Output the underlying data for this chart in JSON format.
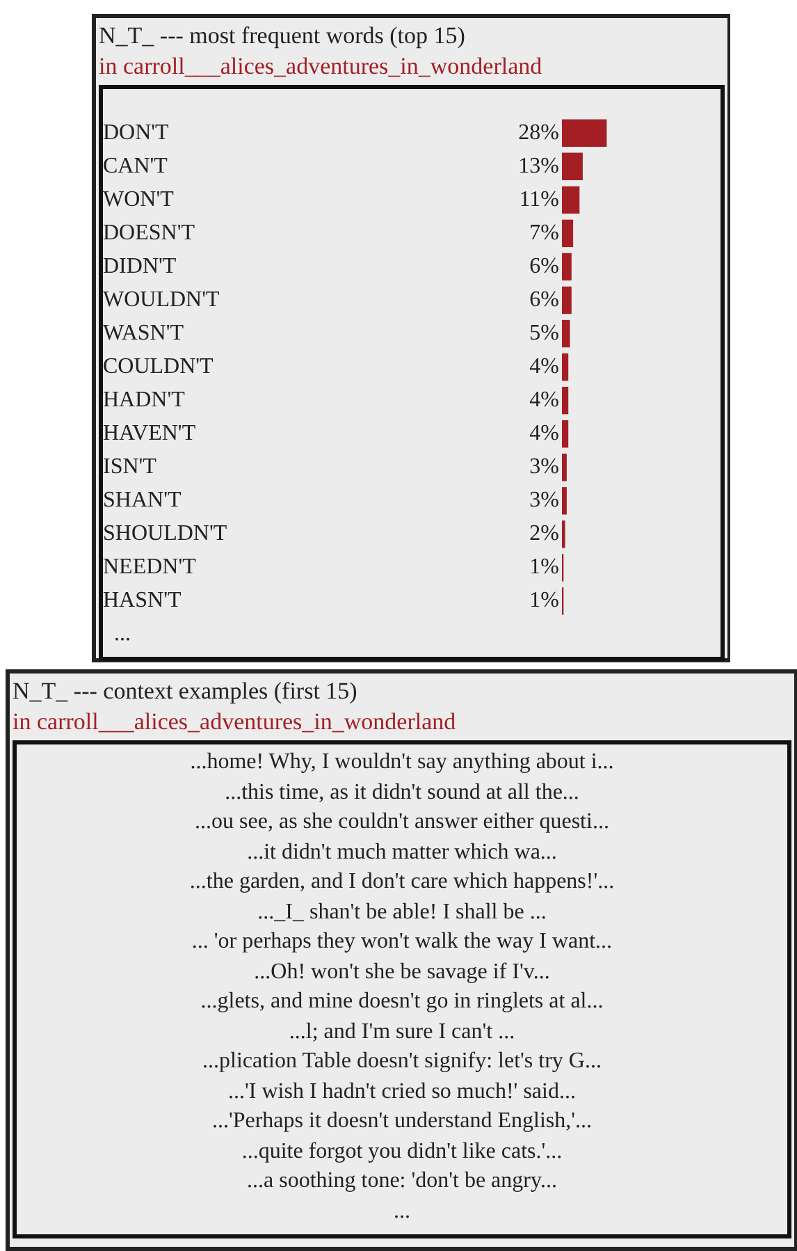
{
  "chart_data": [
    {
      "type": "bar",
      "orientation": "horizontal",
      "title": "N_T_ --- most frequent words (top 15)",
      "subtitle": "in carroll___alices_adventures_in_wonderland",
      "categories": [
        "DON'T",
        "CAN'T",
        "WON'T",
        "DOESN'T",
        "DIDN'T",
        "WOULDN'T",
        "WASN'T",
        "COULDN'T",
        "HADN'T",
        "HAVEN'T",
        "ISN'T",
        "SHAN'T",
        "SHOULDN'T",
        "NEEDN'T",
        "HASN'T"
      ],
      "values": [
        28,
        13,
        11,
        7,
        6,
        6,
        5,
        4,
        4,
        4,
        3,
        3,
        2,
        1,
        1
      ],
      "value_labels": [
        "28%",
        "13%",
        "11%",
        "7%",
        "6%",
        "6%",
        "5%",
        "4%",
        "4%",
        "4%",
        "3%",
        "3%",
        "2%",
        "1%",
        "1%"
      ],
      "color": "#a31f24",
      "xlim": [
        0,
        100
      ],
      "tick_labels": "y",
      "annotations": [
        "..."
      ]
    },
    {
      "type": "other",
      "title": "N_T_ --- context examples (first 15)",
      "subtitle": "in carroll___alices_adventures_in_wonderland",
      "annotations": [
        "...home! Why, I wouldn't say anything about i...",
        "...this time, as it didn't sound at all the...",
        "...ou see, as she couldn't answer either questi...",
        "...it didn't much matter which wa...",
        "...the garden, and I don't care which happens!'...",
        "..._I_ shan't be able! I shall be ...",
        "... 'or perhaps they won't walk the way I want...",
        "...Oh! won't she be savage if I'v...",
        "...glets, and mine doesn't go in ringlets at al...",
        "...l; and I'm sure I can't ...",
        "...plication Table doesn't signify: let's try G...",
        "...'I wish I hadn't cried so much!' said...",
        "...'Perhaps it doesn't understand English,'...",
        "...quite forgot you didn't like cats.'...",
        "...a soothing tone: 'don't be angry...",
        "..."
      ]
    }
  ]
}
